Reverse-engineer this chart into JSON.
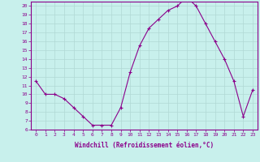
{
  "x": [
    0,
    1,
    2,
    3,
    4,
    5,
    6,
    7,
    8,
    9,
    10,
    11,
    12,
    13,
    14,
    15,
    16,
    17,
    18,
    19,
    20,
    21,
    22,
    23
  ],
  "y": [
    11.5,
    10.0,
    10.0,
    9.5,
    8.5,
    7.5,
    6.5,
    6.5,
    6.5,
    8.5,
    12.5,
    15.5,
    17.5,
    18.5,
    19.5,
    20.0,
    21.0,
    20.0,
    18.0,
    16.0,
    14.0,
    11.5,
    7.5,
    10.5
  ],
  "line_color": "#8B008B",
  "marker": "+",
  "bg_color": "#c8f0ec",
  "grid_color": "#b0d8d4",
  "xlabel": "Windchill (Refroidissement éolien,°C)",
  "xlabel_color": "#8B008B",
  "tick_color": "#8B008B",
  "xlim": [
    -0.5,
    23.5
  ],
  "ylim": [
    6,
    20.5
  ],
  "yticks": [
    6,
    7,
    8,
    9,
    10,
    11,
    12,
    13,
    14,
    15,
    16,
    17,
    18,
    19,
    20
  ],
  "xticks": [
    0,
    1,
    2,
    3,
    4,
    5,
    6,
    7,
    8,
    9,
    10,
    11,
    12,
    13,
    14,
    15,
    16,
    17,
    18,
    19,
    20,
    21,
    22,
    23
  ],
  "spine_color": "#8B008B",
  "axis_bg": "#c8f0ec"
}
